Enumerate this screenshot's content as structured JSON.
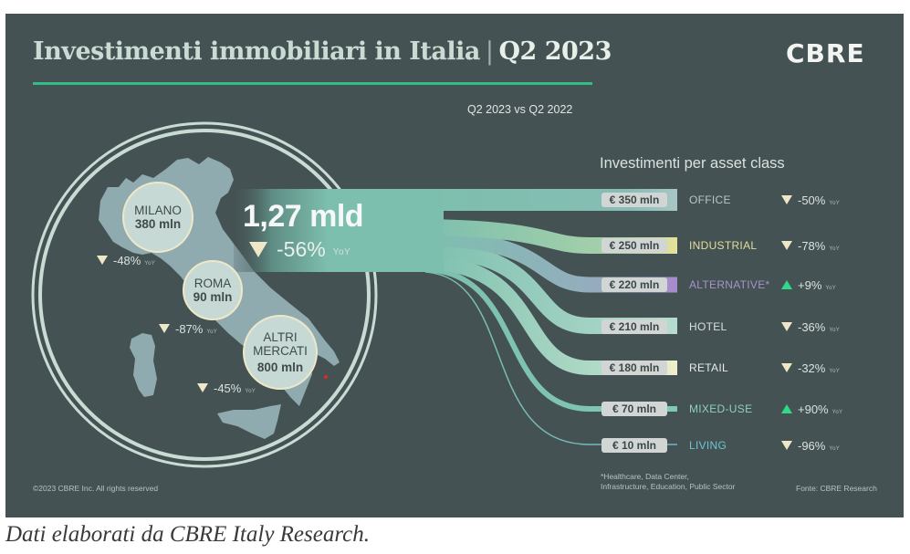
{
  "header": {
    "title": "Investimenti immobiliari in Italia",
    "separator": "|",
    "period": "Q2 2023",
    "logo": "CBRE",
    "comparison": "Q2 2023 vs Q2 2022"
  },
  "colors": {
    "background": "#455254",
    "accent_green": "#2fbf85",
    "up_arrow": "#2ed98c",
    "down_arrow": "#efe8c8",
    "map_fill": "#8fabb0",
    "flow": "#7dbfae"
  },
  "total": {
    "value": "1,27 mld",
    "change": "-56%",
    "direction": "down",
    "yoy": "YoY"
  },
  "cities": [
    {
      "name": "MILANO",
      "value": "380 mln",
      "change": "-48%",
      "direction": "down",
      "yoy": "YoY"
    },
    {
      "name": "ROMA",
      "value": "90 mln",
      "change": "-87%",
      "direction": "down",
      "yoy": "YoY"
    },
    {
      "name_line1": "ALTRI",
      "name_line2": "MERCATI",
      "value": "800 mln",
      "change": "-45%",
      "direction": "down",
      "yoy": "YoY"
    }
  ],
  "asset_section_title": "Investimenti per asset class",
  "asset_classes": [
    {
      "amount": "€ 350 mln",
      "value_mln": 350,
      "name": "OFFICE",
      "change": "-50%",
      "direction": "down",
      "yoy": "YoY",
      "color": "#a8c6c6",
      "label_color": "#b9c6c3"
    },
    {
      "amount": "€ 250 mln",
      "value_mln": 250,
      "name": "INDUSTRIAL",
      "change": "-78%",
      "direction": "down",
      "yoy": "YoY",
      "color": "#e6e29a",
      "label_color": "#e2dd9c"
    },
    {
      "amount": "€ 220 mln",
      "value_mln": 220,
      "name": "ALTERNATIVE*",
      "change": "+9%",
      "direction": "up",
      "yoy": "YoY",
      "color": "#a88bcc",
      "label_color": "#a893c7"
    },
    {
      "amount": "€ 210 mln",
      "value_mln": 210,
      "name": "HOTEL",
      "change": "-36%",
      "direction": "down",
      "yoy": "YoY",
      "color": "#b6dccf",
      "label_color": "#d8e0dd"
    },
    {
      "amount": "€ 180 mln",
      "value_mln": 180,
      "name": "RETAIL",
      "change": "-32%",
      "direction": "down",
      "yoy": "YoY",
      "color": "#f2efcc",
      "label_color": "#e8ecea"
    },
    {
      "amount": "€ 70 mln",
      "value_mln": 70,
      "name": "MIXED-USE",
      "change": "+90%",
      "direction": "up",
      "yoy": "YoY",
      "color": "#7fc8b4",
      "label_color": "#8ecfbe"
    },
    {
      "amount": "€ 10 mln",
      "value_mln": 10,
      "name": "LIVING",
      "change": "-96%",
      "direction": "down",
      "yoy": "YoY",
      "color": "#6fb6c0",
      "label_color": "#6fc3cf"
    }
  ],
  "footer": {
    "copyright": "©2023 CBRE Inc. All rights reserved",
    "note_line1": "*Healthcare, Data Center,",
    "note_line2": "Infrastructure, Education, Public Sector",
    "source": "Fonte: CBRE Research"
  },
  "caption": "Dati elaborati da CBRE Italy Research."
}
